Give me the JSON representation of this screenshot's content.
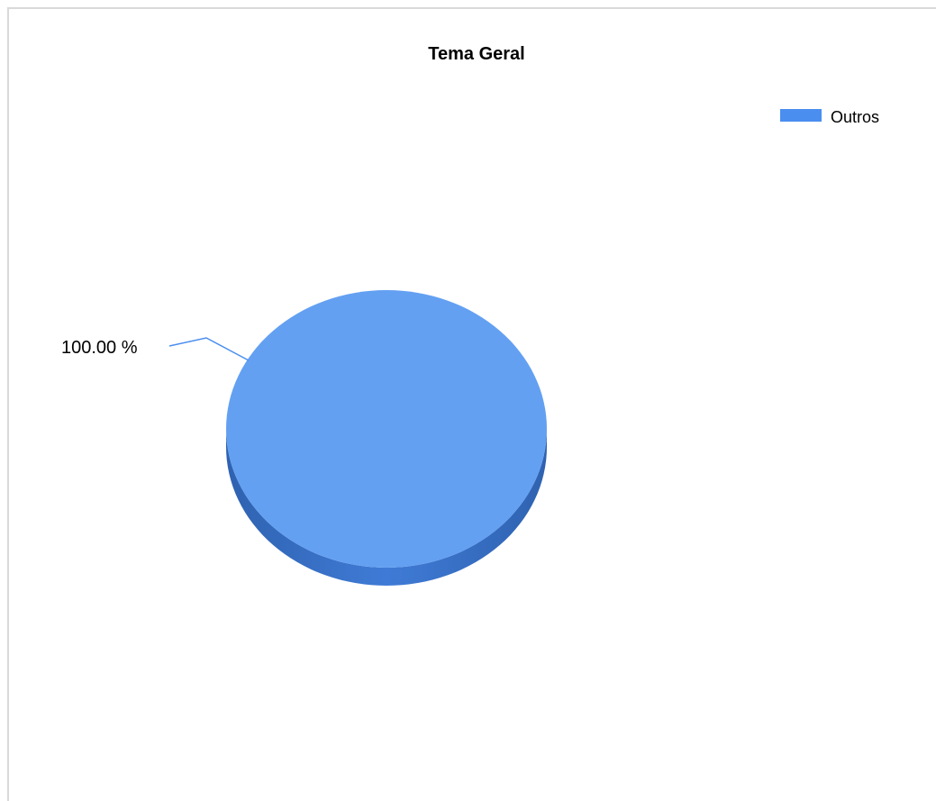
{
  "chart_data": {
    "type": "pie",
    "title": "Tema Geral",
    "legend_position": "top-right",
    "slices": [
      {
        "label": "Outros",
        "value": 100,
        "data_label": "100.00 %",
        "color": "#63a0f2"
      }
    ],
    "colors": {
      "slice_top": "#63a0f2",
      "slice_side": "#3a72c8",
      "legend_swatch": "#4a8ef0",
      "leader_line": "#4a8ef0"
    }
  }
}
